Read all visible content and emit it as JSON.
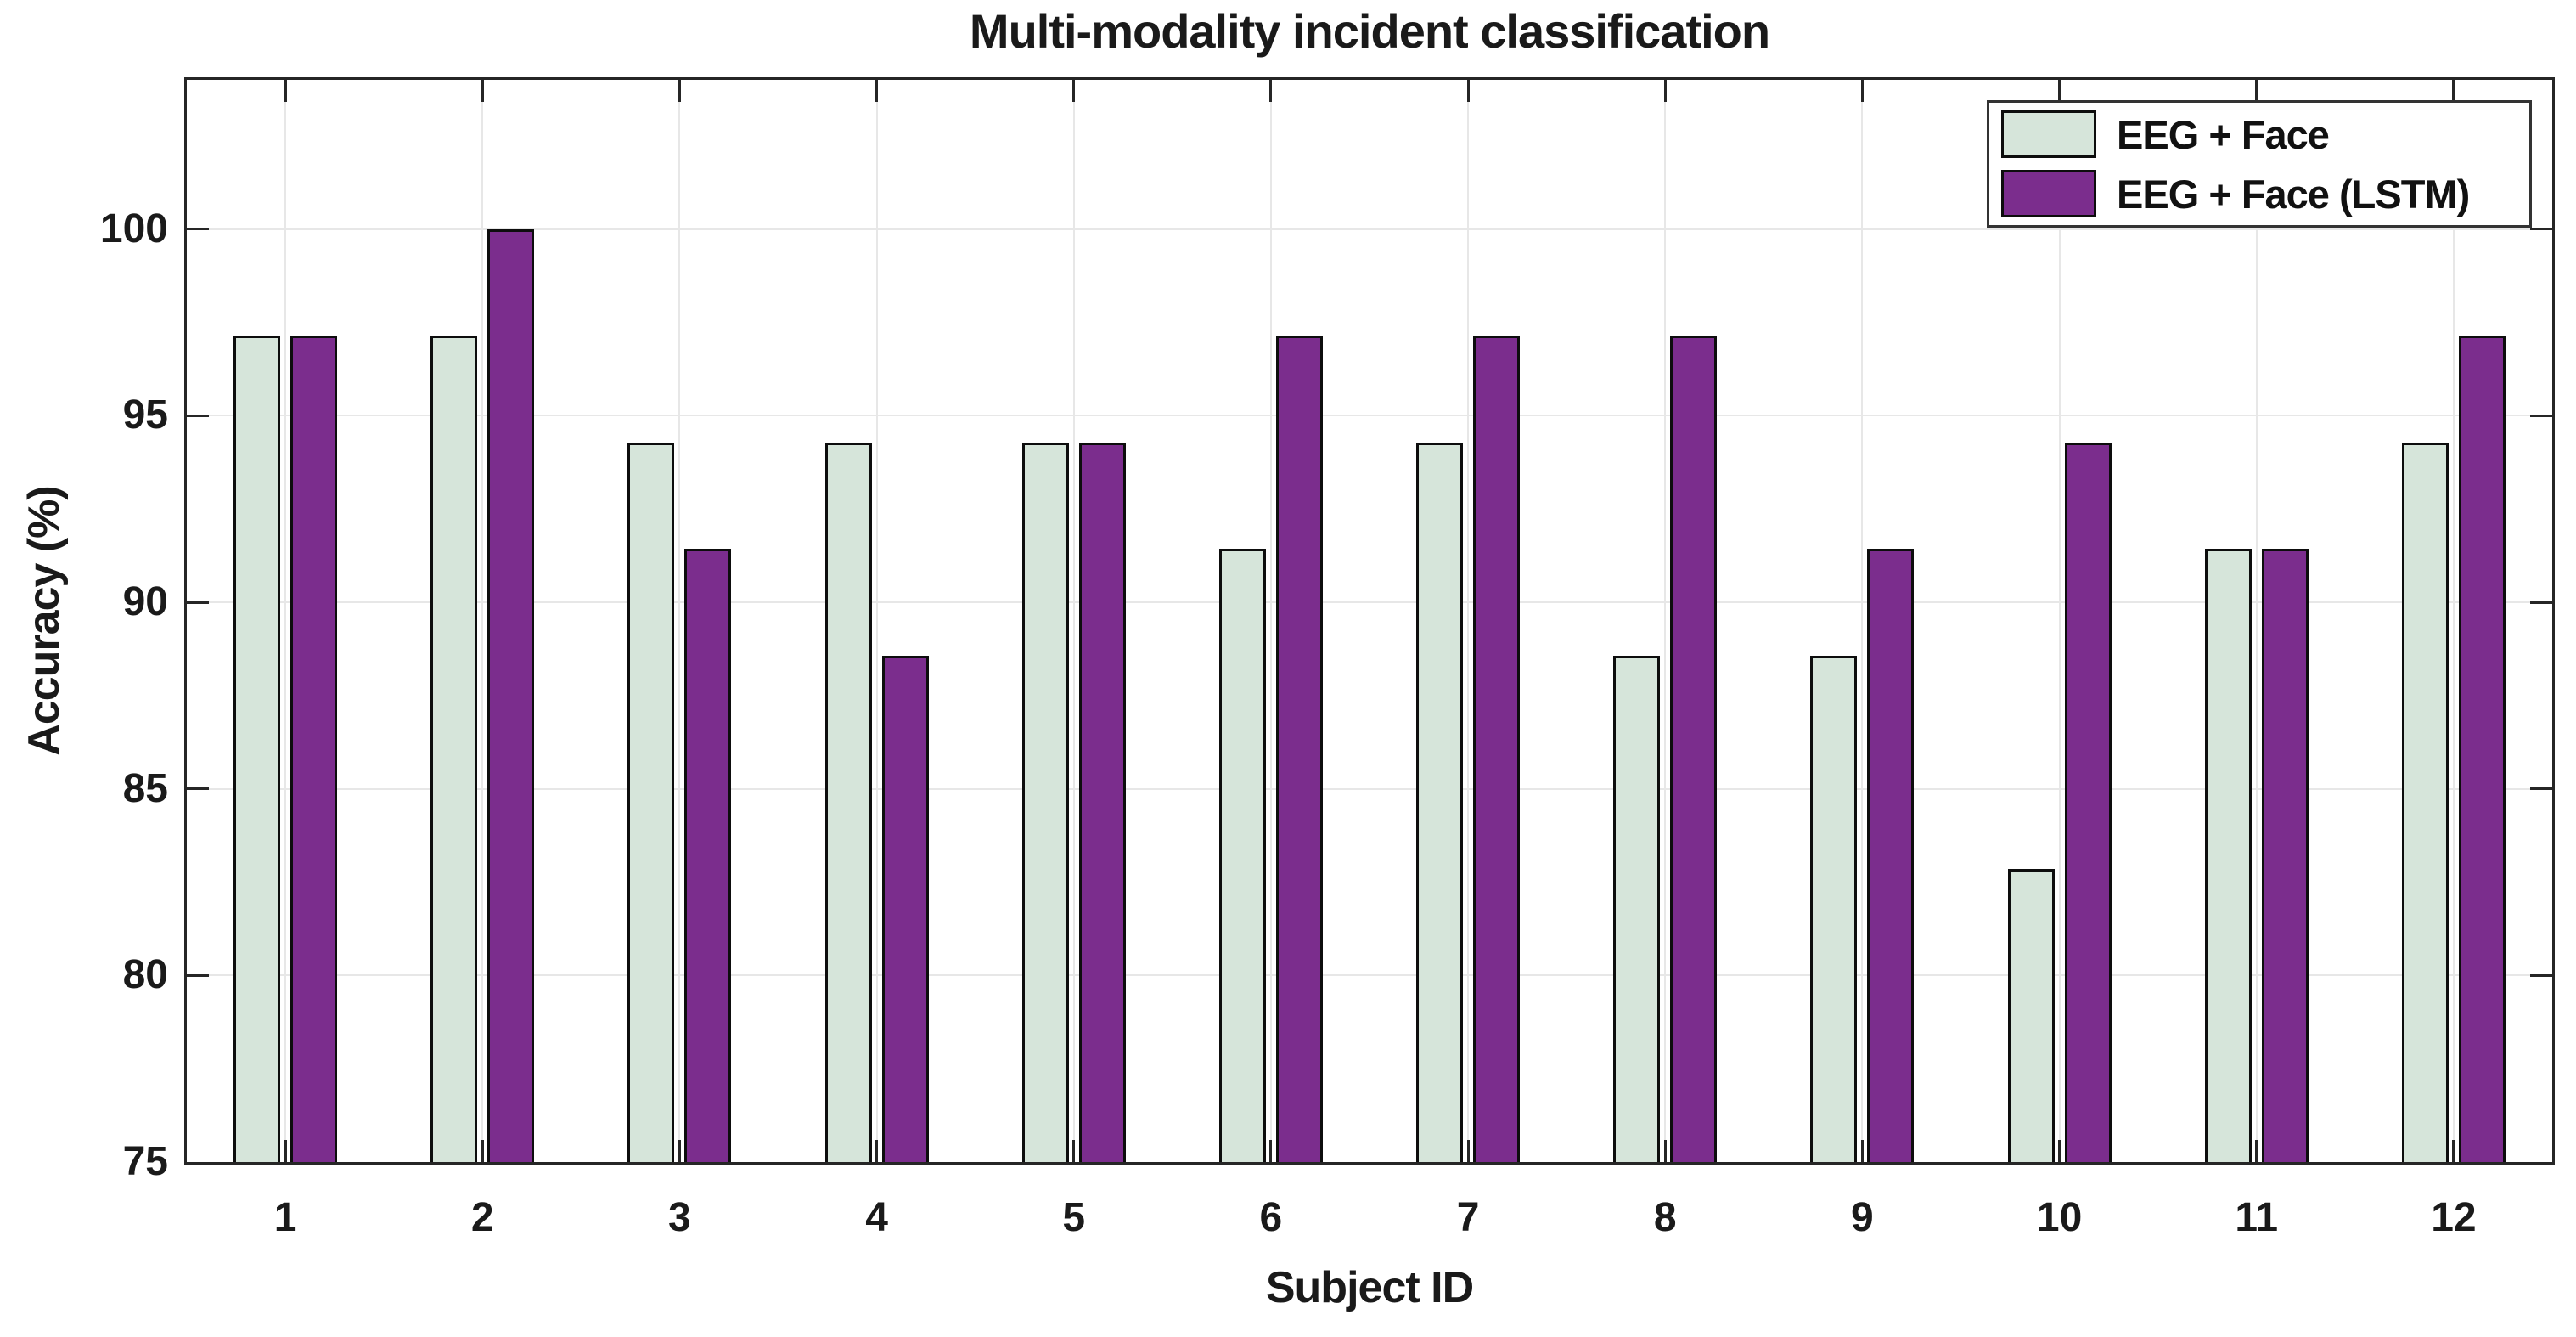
{
  "chart_data": {
    "type": "bar",
    "title": "Multi-modality incident classification",
    "xlabel": "Subject ID",
    "ylabel": "Accuracy (%)",
    "categories": [
      "1",
      "2",
      "3",
      "4",
      "5",
      "6",
      "7",
      "8",
      "9",
      "10",
      "11",
      "12"
    ],
    "series": [
      {
        "name": "EEG + Face",
        "color": "#d6e5da",
        "values": [
          97.14,
          97.14,
          94.29,
          94.29,
          94.29,
          91.43,
          94.29,
          88.57,
          88.57,
          82.86,
          91.43,
          94.29
        ]
      },
      {
        "name": "EEG + Face (LSTM)",
        "color": "#7b2d8d",
        "values": [
          97.14,
          100.0,
          91.43,
          88.57,
          94.29,
          97.14,
          97.14,
          97.14,
          91.43,
          94.29,
          91.43,
          97.14
        ]
      }
    ],
    "ylim": [
      75,
      104
    ],
    "yticks": [
      75,
      80,
      85,
      90,
      95,
      100
    ],
    "grid": true,
    "legend_position": "top-right",
    "bar_edge_color": "#0d0d0d"
  }
}
